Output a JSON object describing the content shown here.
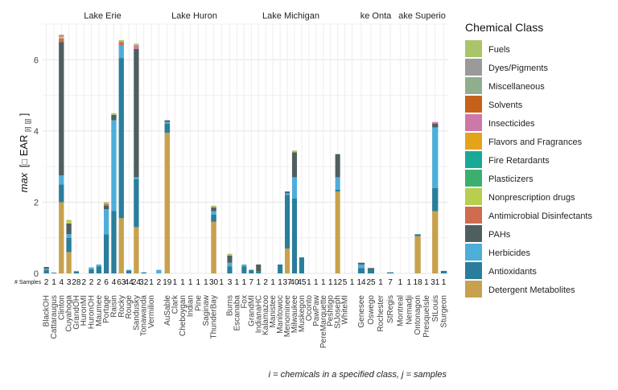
{
  "chart_data": {
    "type": "bar",
    "stacked": true,
    "faceted": true,
    "ylabel_prefix": "max",
    "ylabel_main": "EAR",
    "ylabel_sub": "[i]",
    "ylabel_sub2": "[j]",
    "ylim": [
      0,
      7
    ],
    "yticks": [
      0,
      2,
      4,
      6
    ],
    "grid": true,
    "samples_label": "# Samples",
    "caption": "i = chemicals in a specified class, j = samples",
    "legend": {
      "title": "Chemical Class",
      "position": "right",
      "items": [
        {
          "name": "Fuels",
          "color": "#A8C56B"
        },
        {
          "name": "Dyes/Pigments",
          "color": "#9A9A9A"
        },
        {
          "name": "Miscellaneous",
          "color": "#8FAE8C"
        },
        {
          "name": "Solvents",
          "color": "#C5621A"
        },
        {
          "name": "Insecticides",
          "color": "#CC79A7"
        },
        {
          "name": "Flavors and Fragrances",
          "color": "#E3A31B"
        },
        {
          "name": "Fire Retardants",
          "color": "#1AA897"
        },
        {
          "name": "Plasticizers",
          "color": "#3CAF6F"
        },
        {
          "name": "Nonprescription drugs",
          "color": "#B7CF4C"
        },
        {
          "name": "Antimicrobial Disinfectants",
          "color": "#CF6B4E"
        },
        {
          "name": "PAHs",
          "color": "#4F5F60"
        },
        {
          "name": "Herbicides",
          "color": "#4EAEDA"
        },
        {
          "name": "Antioxidants",
          "color": "#2A7E9B"
        },
        {
          "name": "Detergent Metabolites",
          "color": "#C8A14E"
        }
      ]
    },
    "facets": [
      {
        "name": "Lake Erie",
        "sites": [
          {
            "name": "BlackOH",
            "samples": "2",
            "stack": {
              "Antioxidants": 0.1,
              "Herbicides": 0.03,
              "PAHs": 0.05
            }
          },
          {
            "name": "Cattaraugus",
            "samples": "1",
            "stack": {
              "Antioxidants": 0.02
            }
          },
          {
            "name": "Clinton",
            "samples": "4",
            "stack": {
              "Detergent Metabolites": 2.0,
              "Antioxidants": 0.5,
              "Herbicides": 0.25,
              "PAHs": 3.75,
              "Antimicrobial Disinfectants": 0.1,
              "Nonprescription drugs": 0.05,
              "Insecticides": 0.05
            }
          },
          {
            "name": "Cuyahoga",
            "samples": "3",
            "stack": {
              "Detergent Metabolites": 0.6,
              "Antioxidants": 0.4,
              "Herbicides": 0.1,
              "PAHs": 0.3,
              "Nonprescription drugs": 0.05,
              "Fuels": 0.05
            }
          },
          {
            "name": "GrandOH",
            "samples": "28",
            "stack": {
              "Antioxidants": 0.05,
              "Herbicides": 0.02
            }
          },
          {
            "name": "HuronMI",
            "samples": "2",
            "stack": {}
          },
          {
            "name": "HuronOH",
            "samples": "2",
            "stack": {
              "Antioxidants": 0.12,
              "Herbicides": 0.05
            }
          },
          {
            "name": "Maumee",
            "samples": "2",
            "stack": {
              "Antioxidants": 0.2,
              "Herbicides": 0.05
            }
          },
          {
            "name": "Portage",
            "samples": "6",
            "stack": {
              "Antioxidants": 1.1,
              "Herbicides": 0.7,
              "PAHs": 0.1,
              "Antimicrobial Disinfectants": 0.05,
              "Fuels": 0.05
            }
          },
          {
            "name": "Raisin",
            "samples": "4",
            "stack": {
              "Antioxidants": 1.75,
              "Herbicides": 2.55,
              "PAHs": 0.15,
              "Fuels": 0.05
            }
          },
          {
            "name": "Rocky",
            "samples": "63",
            "stack": {
              "Detergent Metabolites": 1.55,
              "Antioxidants": 4.5,
              "Herbicides": 0.35,
              "Antimicrobial Disinfectants": 0.1,
              "Fuels": 0.05
            }
          },
          {
            "name": "Rouge",
            "samples": "44",
            "stack": {
              "Antioxidants": 0.08,
              "Herbicides": 0.02
            }
          },
          {
            "name": "Sandusky",
            "samples": "24",
            "stack": {
              "Detergent Metabolites": 1.3,
              "Antioxidants": 1.35,
              "Herbicides": 0.05,
              "PAHs": 3.6,
              "Insecticides": 0.1,
              "Fuels": 0.05
            }
          },
          {
            "name": "Tonawanda",
            "samples": "32",
            "stack": {
              "Antioxidants": 0.03
            }
          },
          {
            "name": "Vermilion",
            "samples": "1",
            "stack": {}
          },
          {
            "name": "",
            "samples": "2",
            "stack": {
              "Herbicides": 0.1
            }
          }
        ]
      },
      {
        "name": "Lake Huron",
        "sites": [
          {
            "name": "AuSable",
            "samples": "19",
            "stack": {
              "Detergent Metabolites": 3.95,
              "Antioxidants": 0.25,
              "Herbicides": 0.05,
              "PAHs": 0.05
            }
          },
          {
            "name": "Clark",
            "samples": "1",
            "stack": {}
          },
          {
            "name": "Cheboygan",
            "samples": "1",
            "stack": {}
          },
          {
            "name": "Indian",
            "samples": "1",
            "stack": {}
          },
          {
            "name": "Pine",
            "samples": "1",
            "stack": {}
          },
          {
            "name": "Saginaw",
            "samples": "1",
            "stack": {}
          },
          {
            "name": "ThunderBay",
            "samples": "30",
            "stack": {
              "Detergent Metabolites": 1.45,
              "Antioxidants": 0.2,
              "Herbicides": 0.1,
              "PAHs": 0.1,
              "Fuels": 0.05
            }
          },
          {
            "name": "",
            "samples": "1",
            "stack": {}
          }
        ]
      },
      {
        "name": "Lake Michigan",
        "sites": [
          {
            "name": "Burns",
            "samples": "3",
            "stack": {
              "Antioxidants": 0.2,
              "Herbicides": 0.1,
              "PAHs": 0.2,
              "Fuels": 0.05
            }
          },
          {
            "name": "Escanaba",
            "samples": "1",
            "stack": {}
          },
          {
            "name": "Fox",
            "samples": "1",
            "stack": {
              "Antioxidants": 0.2,
              "Herbicides": 0.05
            }
          },
          {
            "name": "GrandMI",
            "samples": "7",
            "stack": {
              "Antioxidants": 0.1
            }
          },
          {
            "name": "IndianaHC",
            "samples": "1",
            "stack": {
              "Antioxidants": 0.05,
              "PAHs": 0.2
            }
          },
          {
            "name": "Kalamazoo",
            "samples": "2",
            "stack": {}
          },
          {
            "name": "Manistee",
            "samples": "1",
            "stack": {}
          },
          {
            "name": "Manitowoc",
            "samples": "1",
            "stack": {
              "Antioxidants": 0.25
            }
          },
          {
            "name": "Menominee",
            "samples": "37",
            "stack": {
              "Detergent Metabolites": 0.7,
              "Antioxidants": 1.5,
              "Herbicides": 0.05,
              "PAHs": 0.05
            }
          },
          {
            "name": "Milwaukee",
            "samples": "40",
            "stack": {
              "Antioxidants": 2.1,
              "Herbicides": 0.6,
              "PAHs": 0.7,
              "Fuels": 0.05
            }
          },
          {
            "name": "Muskegon",
            "samples": "45",
            "stack": {
              "Antioxidants": 0.45
            }
          },
          {
            "name": "Oconto",
            "samples": "1",
            "stack": {}
          },
          {
            "name": "PawPaw",
            "samples": "1",
            "stack": {}
          },
          {
            "name": "PereMarquette",
            "samples": "1",
            "stack": {}
          },
          {
            "name": "Peshtigo",
            "samples": "1",
            "stack": {}
          },
          {
            "name": "StJoseph",
            "samples": "12",
            "stack": {
              "Detergent Metabolites": 2.3,
              "Herbicides": 0.35,
              "PAHs": 0.65,
              "Antioxidants": 0.05
            }
          },
          {
            "name": "WhiteMI",
            "samples": "5",
            "stack": {}
          },
          {
            "name": "",
            "samples": "1",
            "stack": {}
          }
        ]
      },
      {
        "name": "Lake Ontario",
        "display_name": "ke Onta",
        "sites": [
          {
            "name": "Genesee",
            "samples": "14",
            "stack": {
              "Antioxidants": 0.15,
              "Herbicides": 0.1,
              "PAHs": 0.05
            }
          },
          {
            "name": "Oswego",
            "samples": "25",
            "stack": {
              "Antioxidants": 0.1,
              "PAHs": 0.05
            }
          },
          {
            "name": "Rochester",
            "samples": "1",
            "stack": {}
          },
          {
            "name": "StRegis",
            "samples": "7",
            "stack": {
              "Antioxidants": 0.03
            }
          }
        ]
      },
      {
        "name": "Lake Superior",
        "display_name": "ake Superio",
        "sites": [
          {
            "name": "Montreal",
            "samples": "1",
            "stack": {}
          },
          {
            "name": "Nemadji",
            "samples": "1",
            "stack": {}
          },
          {
            "name": "Ontonagon",
            "samples": "18",
            "stack": {
              "Detergent Metabolites": 1.05,
              "Antioxidants": 0.05
            }
          },
          {
            "name": "PresqueIsle",
            "samples": "1",
            "stack": {}
          },
          {
            "name": "StLouis",
            "samples": "31",
            "stack": {
              "Detergent Metabolites": 1.75,
              "Antioxidants": 0.65,
              "Herbicides": 1.7,
              "PAHs": 0.1,
              "Insecticides": 0.05
            }
          },
          {
            "name": "Sturgeon",
            "samples": "1",
            "stack": {
              "Antioxidants": 0.07
            }
          }
        ]
      }
    ]
  }
}
